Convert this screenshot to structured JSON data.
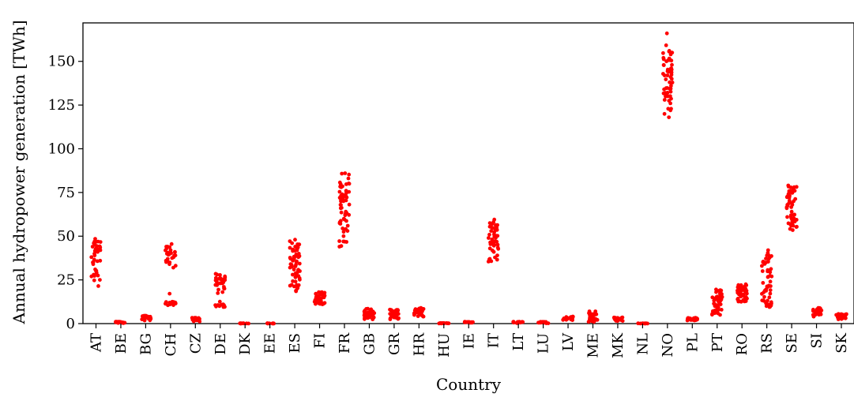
{
  "chart_data": {
    "type": "scatter",
    "xlabel": "Country",
    "ylabel": "Annual hydropower generation [TWh]",
    "ylim": [
      0,
      172
    ],
    "yticks": [
      0,
      25,
      50,
      75,
      100,
      125,
      150
    ],
    "color": "#ff0000",
    "grid": false,
    "categories": [
      "AT",
      "BE",
      "BG",
      "CH",
      "CZ",
      "DE",
      "DK",
      "EE",
      "ES",
      "FI",
      "FR",
      "GB",
      "GR",
      "HR",
      "HU",
      "IE",
      "IT",
      "LT",
      "LU",
      "LV",
      "ME",
      "MK",
      "NL",
      "NO",
      "PL",
      "PT",
      "RO",
      "RS",
      "SE",
      "SI",
      "SK"
    ],
    "distributions": {
      "AT": {
        "n": 40,
        "values": [
          21.5,
          25,
          27,
          28,
          29,
          30,
          31,
          35,
          36,
          38,
          39,
          40,
          41,
          42,
          43,
          44,
          45,
          46,
          47,
          48.5
        ]
      },
      "BE": {
        "n": 15,
        "values": [
          0.3,
          0.5,
          0.7,
          0.9,
          1.1
        ]
      },
      "BG": {
        "n": 25,
        "values": [
          1.8,
          2.5,
          3,
          3.5,
          4,
          4.5
        ]
      },
      "CH": {
        "n": 40,
        "values": [
          10.5,
          11,
          11.5,
          12,
          12.5,
          32,
          34,
          35,
          36,
          37,
          38,
          39,
          40,
          41,
          42,
          43,
          44,
          45.5
        ]
      },
      "CZ": {
        "n": 20,
        "values": [
          1.2,
          1.8,
          2.3,
          2.8,
          3.3
        ]
      },
      "DE": {
        "n": 40,
        "values": [
          9.5,
          10,
          10.5,
          11,
          18,
          20,
          21,
          22,
          23,
          24,
          25,
          26,
          27,
          28.5
        ]
      },
      "DK": {
        "n": 10,
        "values": [
          0.05,
          0.1,
          0.15
        ]
      },
      "EE": {
        "n": 10,
        "values": [
          0.05,
          0.1,
          0.15
        ]
      },
      "ES": {
        "n": 60,
        "values": [
          18.5,
          20,
          22,
          24,
          26,
          28,
          30,
          32,
          34,
          36,
          38,
          40,
          42,
          44,
          46,
          48
        ]
      },
      "FI": {
        "n": 35,
        "values": [
          11,
          12,
          13,
          14,
          15,
          16,
          17,
          18
        ]
      },
      "FR": {
        "n": 60,
        "values": [
          44,
          47,
          50,
          53,
          56,
          58,
          60,
          62,
          64,
          66,
          68,
          70,
          72,
          74,
          76,
          78,
          80,
          83,
          86
        ]
      },
      "GB": {
        "n": 35,
        "values": [
          2.5,
          3.5,
          4.5,
          5.5,
          6.5,
          7.5,
          8.5
        ]
      },
      "GR": {
        "n": 35,
        "values": [
          2.5,
          3.5,
          4.5,
          5.5,
          6.5,
          7.5,
          8
        ]
      },
      "HR": {
        "n": 30,
        "values": [
          4,
          5,
          6,
          7,
          8,
          9
        ]
      },
      "HU": {
        "n": 12,
        "values": [
          0.1,
          0.2,
          0.3
        ]
      },
      "IE": {
        "n": 15,
        "values": [
          0.5,
          0.7,
          0.9,
          1.1
        ]
      },
      "IT": {
        "n": 45,
        "values": [
          35.5,
          37,
          39,
          41,
          43,
          45,
          47,
          49,
          51,
          53,
          55,
          57,
          59.5
        ]
      },
      "LT": {
        "n": 12,
        "values": [
          0.3,
          0.6,
          0.9,
          1.1
        ]
      },
      "LU": {
        "n": 12,
        "values": [
          0.2,
          0.5,
          0.8,
          1
        ]
      },
      "LV": {
        "n": 25,
        "values": [
          2,
          2.5,
          3,
          3.5,
          4
        ]
      },
      "ME": {
        "n": 30,
        "values": [
          1,
          2,
          3,
          4,
          5,
          6,
          7
        ]
      },
      "MK": {
        "n": 20,
        "values": [
          1.5,
          2,
          2.5,
          3,
          3.5
        ]
      },
      "NL": {
        "n": 10,
        "values": [
          0.05,
          0.1,
          0.15
        ]
      },
      "NO": {
        "n": 60,
        "values": [
          118,
          122,
          126,
          128,
          130,
          132,
          134,
          136,
          138,
          140,
          142,
          144,
          146,
          148,
          150,
          152,
          154,
          156,
          166
        ]
      },
      "PL": {
        "n": 25,
        "values": [
          1.8,
          2.3,
          2.8,
          3.3
        ]
      },
      "PT": {
        "n": 50,
        "values": [
          5,
          6,
          7,
          8,
          9,
          10,
          11,
          12,
          13,
          14,
          15,
          16,
          17,
          18,
          19.5
        ]
      },
      "RO": {
        "n": 45,
        "values": [
          12.5,
          13.5,
          14.5,
          15.5,
          16.5,
          17.5,
          18.5,
          19.5,
          20.5,
          22.5
        ]
      },
      "RS": {
        "n": 50,
        "values": [
          9.5,
          11,
          13,
          15,
          17,
          19,
          21,
          24,
          27,
          30,
          33,
          35,
          37,
          39,
          42
        ]
      },
      "SE": {
        "n": 55,
        "values": [
          53.5,
          56,
          58,
          60,
          62,
          64,
          66,
          68,
          70,
          72,
          74,
          76,
          78,
          79
        ]
      },
      "SI": {
        "n": 30,
        "values": [
          4,
          5,
          6,
          7,
          8,
          9
        ]
      },
      "SK": {
        "n": 30,
        "values": [
          2.5,
          3.5,
          4.5,
          5.5
        ]
      }
    }
  }
}
